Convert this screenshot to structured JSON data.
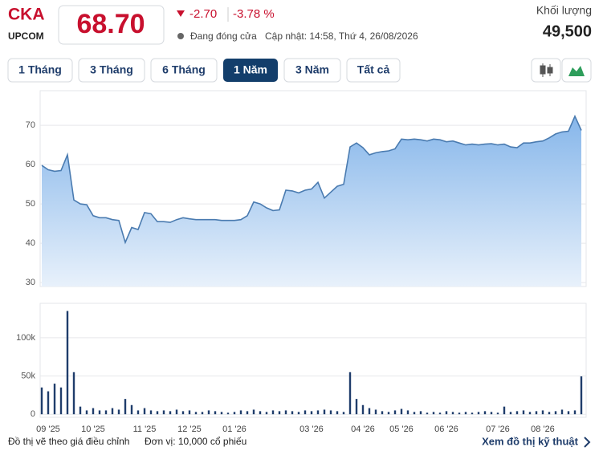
{
  "header": {
    "symbol": "CKA",
    "exchange": "UPCOM",
    "price": "68.70",
    "change": "-2.70",
    "change_pct": "-3.78 %",
    "status": "Đang đóng cửa",
    "updated": "Cập nhật: 14:58, Thứ 4, 26/08/2026",
    "volume_label": "Khối lượng",
    "volume": "49,500"
  },
  "tabs": [
    "1 Tháng",
    "3 Tháng",
    "6 Tháng",
    "1 Năm",
    "3 Năm",
    "Tất cả"
  ],
  "footer": {
    "note": "Đồ thị vẽ theo giá điều chỉnh",
    "unit": "Đơn vị: 10,000 cổ phiếu",
    "link": "Xem đồ thị kỹ thuật"
  },
  "chart_data": [
    {
      "type": "area",
      "color": "#4a7bb0",
      "values": [
        59.8,
        58.7,
        58.3,
        58.5,
        62.5,
        51,
        50,
        49.8,
        47,
        46.5,
        46.5,
        46,
        45.8,
        40.2,
        44,
        43.5,
        47.8,
        47.5,
        45.5,
        45.5,
        45.3,
        46,
        46.5,
        46.2,
        46,
        46,
        46,
        46,
        45.8,
        45.8,
        45.8,
        46,
        47,
        50.5,
        50,
        49,
        48.3,
        48.5,
        53.5,
        53.3,
        52.8,
        53.5,
        53.8,
        55.5,
        51.5,
        53,
        54.5,
        55,
        64.5,
        65.5,
        64.3,
        62.5,
        63,
        63.3,
        63.5,
        64,
        66.5,
        66.3,
        66.5,
        66.3,
        66,
        66.5,
        66.3,
        65.8,
        66,
        65.5,
        65,
        65.2,
        65,
        65.2,
        65.3,
        65,
        65.2,
        64.5,
        64.3,
        65.5,
        65.5,
        65.8,
        66,
        66.8,
        67.8,
        68.3,
        68.5,
        72.3,
        68.7
      ],
      "ylim": [
        29,
        78.8
      ],
      "yticks": [
        30,
        40,
        50,
        60,
        70
      ],
      "grid": true
    },
    {
      "type": "bar",
      "color": "#1f3d6b",
      "categories": [
        null,
        "09 '25",
        null,
        null,
        null,
        null,
        null,
        null,
        "10 '25",
        null,
        null,
        null,
        null,
        null,
        null,
        null,
        "11 '25",
        null,
        null,
        null,
        null,
        null,
        null,
        "12 '25",
        null,
        null,
        null,
        null,
        null,
        null,
        "01 '26",
        null,
        null,
        null,
        null,
        null,
        null,
        null,
        null,
        null,
        null,
        null,
        "03 '26",
        null,
        null,
        null,
        null,
        null,
        null,
        null,
        "04 '26",
        null,
        null,
        null,
        null,
        null,
        "05 '26",
        null,
        null,
        null,
        null,
        null,
        null,
        "06 '26",
        null,
        null,
        null,
        null,
        null,
        null,
        null,
        "07 '26",
        null,
        null,
        null,
        null,
        null,
        null,
        "08 '26",
        null,
        null,
        null,
        null,
        null,
        null
      ],
      "values": [
        35000,
        30000,
        40000,
        35000,
        135000,
        55000,
        10000,
        5000,
        8000,
        5000,
        5000,
        8000,
        6000,
        20000,
        12000,
        5000,
        8000,
        5000,
        4000,
        5000,
        4000,
        6000,
        4000,
        5000,
        3000,
        3000,
        5000,
        4000,
        3000,
        2000,
        3000,
        5000,
        4000,
        6000,
        4000,
        3000,
        5000,
        4000,
        5000,
        4000,
        3000,
        5000,
        4000,
        5000,
        6000,
        5000,
        4000,
        3000,
        55000,
        20000,
        12000,
        8000,
        6000,
        4000,
        3000,
        5000,
        7000,
        5000,
        3000,
        4000,
        2000,
        3000,
        2000,
        4000,
        3000,
        2000,
        3000,
        2000,
        3000,
        4000,
        3000,
        2000,
        10000,
        3000,
        4000,
        5000,
        3000,
        4000,
        5000,
        3000,
        4000,
        6000,
        4000,
        5000,
        49500
      ],
      "ylim": [
        -4000,
        145000
      ],
      "yticks": [
        {
          "value": 0,
          "label": "0"
        },
        {
          "value": 50000,
          "label": "50k"
        },
        {
          "value": 100000,
          "label": "100k"
        }
      ],
      "grid": true
    }
  ]
}
